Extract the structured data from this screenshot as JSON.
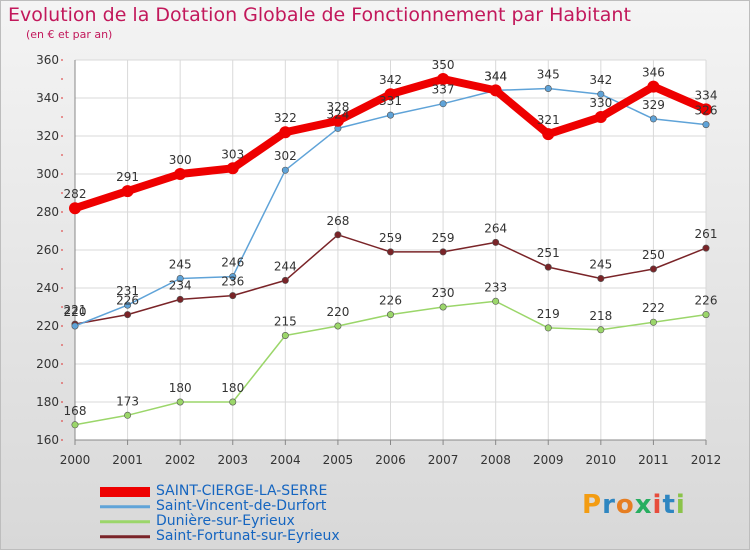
{
  "header": {
    "title": "Evolution de la Dotation Globale de Fonctionnement par Habitant",
    "subtitle": "(en € et par an)"
  },
  "logo": {
    "text": "Proxiti"
  },
  "colors": {
    "title": "#c2185b",
    "axis_text": "#333333",
    "grid": "#d9d9d9",
    "legend_text": "#1565c0"
  },
  "chart_data": {
    "type": "line",
    "x": [
      "2000",
      "2001",
      "2002",
      "2003",
      "2004",
      "2005",
      "2006",
      "2007",
      "2008",
      "2009",
      "2010",
      "2011",
      "2012"
    ],
    "ylim": [
      160,
      360
    ],
    "yticks": [
      160,
      180,
      200,
      220,
      240,
      260,
      280,
      300,
      320,
      340,
      360
    ],
    "grid": true,
    "legend_position": "bottom-left",
    "series": [
      {
        "name": "SAINT-CIERGE-LA-SERRE",
        "color": "#ee0000",
        "width": 8,
        "values": [
          282,
          291,
          300,
          303,
          322,
          328,
          342,
          350,
          344,
          321,
          330,
          346,
          334
        ]
      },
      {
        "name": "Saint-Vincent-de-Durfort",
        "color": "#5fa3d8",
        "width": 1.5,
        "values": [
          220,
          231,
          245,
          246,
          302,
          324,
          331,
          337,
          344,
          345,
          342,
          329,
          326
        ]
      },
      {
        "name": "Dunière-sur-Eyrieux",
        "color": "#9bd66a",
        "width": 1.5,
        "values": [
          168,
          173,
          180,
          180,
          215,
          220,
          226,
          230,
          233,
          219,
          218,
          222,
          226
        ]
      },
      {
        "name": "Saint-Fortunat-sur-Eyrieux",
        "color": "#7a2428",
        "width": 1.5,
        "values": [
          221,
          226,
          234,
          236,
          244,
          268,
          259,
          259,
          264,
          251,
          245,
          250,
          261
        ]
      }
    ]
  }
}
